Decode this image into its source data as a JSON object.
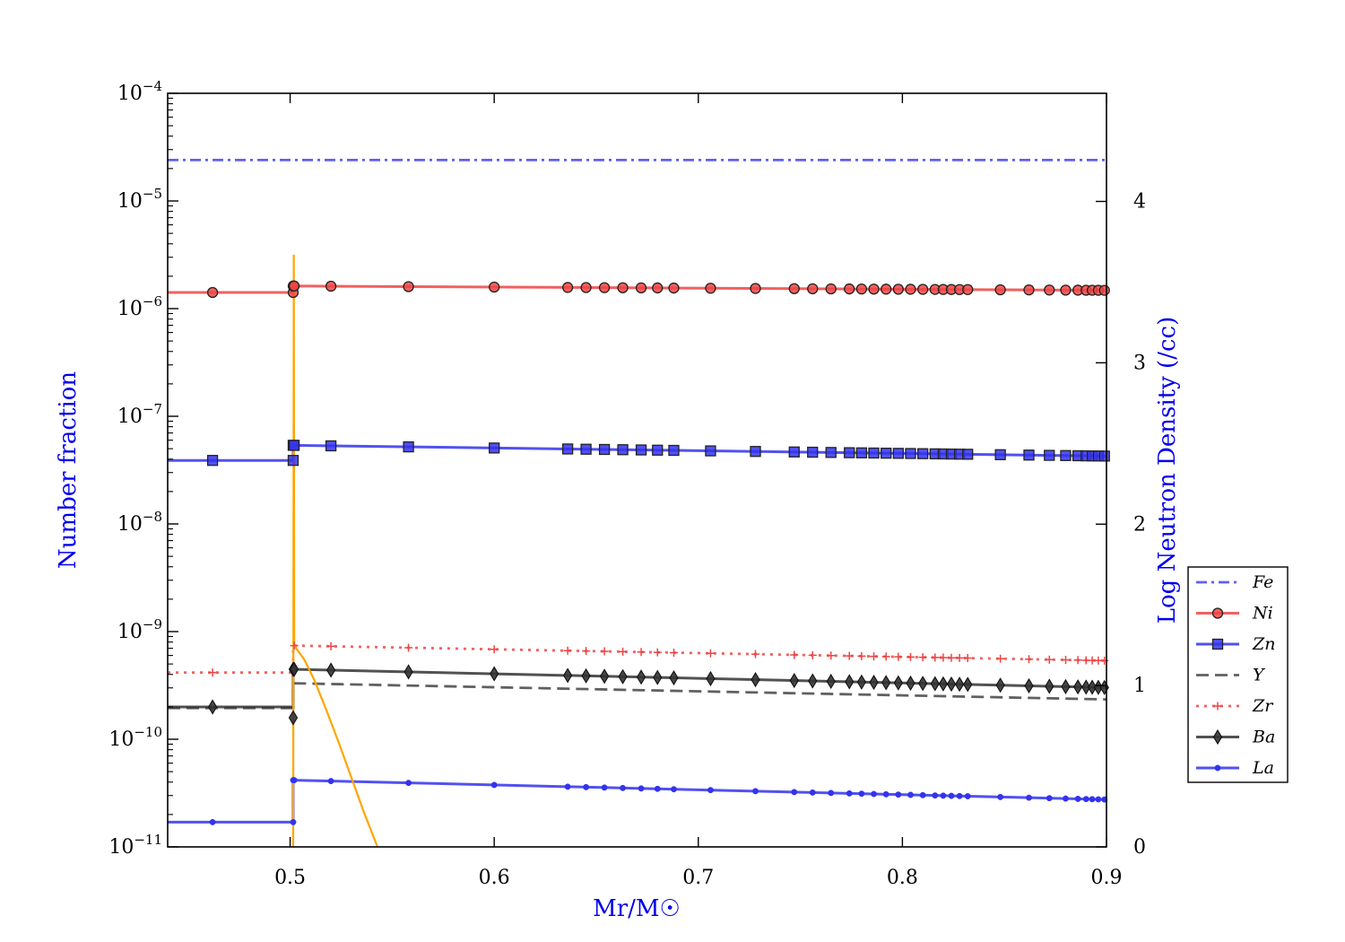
{
  "chart_data": {
    "type": "line",
    "title": "",
    "xlabel": "Mr/M☉",
    "ylabel": "Number fraction",
    "y2label": "Log Neutron Density (/cc)",
    "xlim": [
      0.44,
      0.9
    ],
    "ylim_log10": [
      -11,
      -4
    ],
    "y2lim": [
      0,
      4.67
    ],
    "yscale": "log",
    "legend_position": "center-right outside",
    "x_ticks": [
      0.5,
      0.6,
      0.7,
      0.8,
      0.9
    ],
    "x_tick_labels": [
      "0.5",
      "0.6",
      "0.7",
      "0.8",
      "0.9"
    ],
    "y_ticks_log10": [
      -11,
      -10,
      -9,
      -8,
      -7,
      -6,
      -5,
      -4
    ],
    "y_tick_bases": [
      "10",
      "10",
      "10",
      "10",
      "10",
      "10",
      "10",
      "10"
    ],
    "y_tick_exponents": [
      "−11",
      "−10",
      "−9",
      "−8",
      "−7",
      "−6",
      "−5",
      "−4"
    ],
    "y2_ticks": [
      0,
      1,
      2,
      3,
      4
    ],
    "y2_tick_labels": [
      "0",
      "1",
      "2",
      "3",
      "4"
    ],
    "markers_x": [
      0.502,
      0.52,
      0.558,
      0.6,
      0.636,
      0.645,
      0.654,
      0.663,
      0.672,
      0.68,
      0.688,
      0.706,
      0.728,
      0.747,
      0.756,
      0.765,
      0.774,
      0.78,
      0.786,
      0.792,
      0.798,
      0.804,
      0.81,
      0.816,
      0.82,
      0.824,
      0.828,
      0.832,
      0.848,
      0.862,
      0.872,
      0.88,
      0.886,
      0.89,
      0.893,
      0.896,
      0.899
    ],
    "series": [
      {
        "name": "Fe",
        "style": "dashdot",
        "color": "#4444ee",
        "marker": "none",
        "axis": "left",
        "constant_log10": -4.62
      },
      {
        "name": "Ni",
        "style": "solid",
        "color": "#ee4444",
        "marker": "circle",
        "axis": "left",
        "pre_x": 0.462,
        "pre_log10": -5.85,
        "jump_marker_log10": [
          -5.85,
          -5.79
        ],
        "start_log10": -5.79,
        "end_log10": -5.83
      },
      {
        "name": "Zn",
        "style": "solid",
        "color": "#3333ee",
        "marker": "square",
        "axis": "left",
        "pre_x": 0.462,
        "pre_log10": -7.41,
        "jump_marker_log10": [
          -7.41,
          -7.27
        ],
        "start_log10": -7.27,
        "end_log10": -7.37
      },
      {
        "name": "Y",
        "style": "dashed",
        "color": "#444444",
        "marker": "none",
        "axis": "left",
        "pre_log10": -9.71,
        "start_log10": -9.48,
        "end_log10": -9.63
      },
      {
        "name": "Zr",
        "style": "dotted",
        "color": "#ee4444",
        "marker": "plus",
        "axis": "left",
        "pre_x": 0.462,
        "pre_log10": -9.38,
        "jump_marker_log10": [],
        "start_log10": -9.13,
        "end_log10": -9.27
      },
      {
        "name": "Ba",
        "style": "solid",
        "color": "#333333",
        "marker": "diamond",
        "axis": "left",
        "pre_x": 0.462,
        "pre_log10": -9.7,
        "jump_marker_log10": [
          -9.8,
          -9.35
        ],
        "start_log10": -9.35,
        "end_log10": -9.52
      },
      {
        "name": "La",
        "style": "solid",
        "color": "#3333ee",
        "marker": "dot",
        "axis": "left",
        "pre_x": 0.462,
        "pre_log10": -10.77,
        "jump_marker_log10": [
          -10.77,
          -10.38
        ],
        "start_log10": -10.38,
        "end_log10": -10.56
      },
      {
        "name": "Log Neutron Density",
        "style": "solid",
        "color": "#ffa500",
        "marker": "none",
        "axis": "right",
        "x": [
          0.5015,
          0.5018,
          0.502,
          0.503,
          0.507,
          0.512,
          0.518,
          0.524,
          0.53,
          0.536,
          0.5428
        ],
        "y": [
          0,
          3.67,
          1.25,
          1.23,
          1.16,
          1.03,
          0.84,
          0.64,
          0.43,
          0.22,
          0
        ]
      }
    ],
    "legend": [
      "Fe",
      "Ni",
      "Zn",
      "Y",
      "Zr",
      "Ba",
      "La"
    ]
  }
}
